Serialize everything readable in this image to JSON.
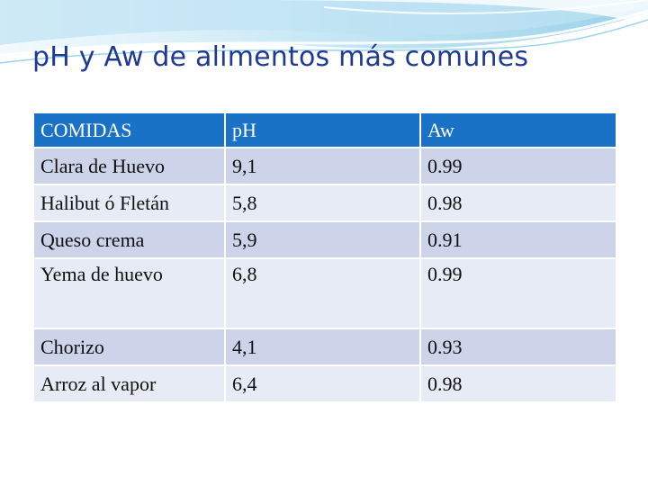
{
  "slide": {
    "title": "pH y Aw de alimentos más comunes"
  },
  "table": {
    "headers": [
      "COMIDAS",
      "pH",
      "Aw"
    ],
    "rows": [
      [
        "Clara de Huevo",
        "9,1",
        "0.99"
      ],
      [
        "Halibut ó Fletán",
        "5,8",
        "0.98"
      ],
      [
        "Queso crema",
        "5,9",
        "0.91"
      ],
      [
        "Yema de huevo",
        "6,8",
        "0.99"
      ],
      [
        "Chorizo",
        "4,1",
        "0.93"
      ],
      [
        "Arroz  al vapor",
        "6,4",
        "0.98"
      ]
    ]
  },
  "colors": {
    "title": "#1f3a93",
    "header_fill": "#1a72c7",
    "row_fill_dark": "#cdd4ea",
    "row_fill_light": "#e7ebf5",
    "swoosh": "#5fb8df"
  }
}
